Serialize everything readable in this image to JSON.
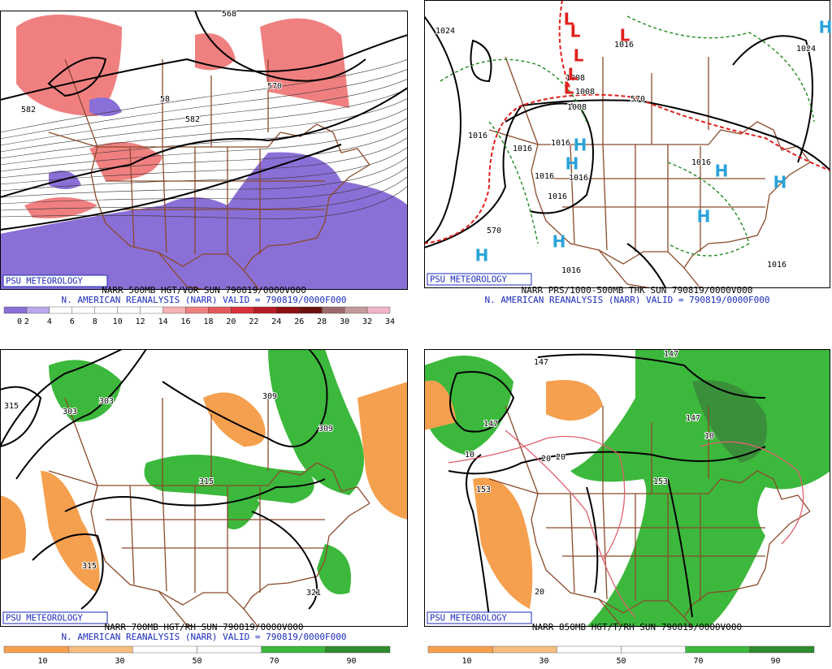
{
  "panels": [
    {
      "logo": "PSU METEOROLOGY",
      "title": "NARR 500MB HGT/VOR SUN 790819/0000V000",
      "subtitle": "N. AMERICAN REANALYSIS (NARR) VALID = 790819/0000F000",
      "contour_labels": [
        "568",
        "570",
        "582",
        "58",
        "582"
      ],
      "colorbar": [
        "0",
        "2",
        "4",
        "6",
        "8",
        "10",
        "12",
        "14",
        "16",
        "18",
        "20",
        "22",
        "24",
        "26",
        "28",
        "30",
        "32",
        "34"
      ]
    },
    {
      "logo": "PSU METEOROLOGY",
      "title": "NARR PRS/1000-500MB THK SUN 790819/0000V000",
      "subtitle": "N. AMERICAN REANALYSIS (NARR) VALID = 790819/0000F000",
      "contour_labels": [
        "1024",
        "1024",
        "1016",
        "1008",
        "1008",
        "1008",
        "570",
        "1016",
        "1016",
        "1016",
        "1016",
        "1016",
        "1016",
        "1016",
        "1016",
        "1016",
        "570"
      ],
      "pressure_centers": [
        "H",
        "H",
        "H",
        "H",
        "H",
        "H",
        "H",
        "H",
        "L",
        "L",
        "L",
        "L",
        "L",
        "L"
      ]
    },
    {
      "logo": "PSU METEOROLOGY",
      "title": "NARR 700MB HGT/RH SUN 790819/0000V000",
      "subtitle": "N. AMERICAN REANALYSIS (NARR) VALID = 790819/0000F000",
      "contour_labels": [
        "315",
        "303",
        "303",
        "309",
        "309",
        "315",
        "315",
        "321"
      ],
      "colorbar": [
        "10",
        "30",
        "50",
        "70",
        "90"
      ]
    },
    {
      "logo": "PSU METEOROLOGY",
      "title": "NARR 850MB HGT/T/RH SUN 790819/0000V000",
      "contour_labels": [
        "147",
        "147",
        "147",
        "147",
        "153",
        "153",
        "10",
        "20",
        "20",
        "10",
        "20"
      ],
      "colorbar": [
        "10",
        "30",
        "50",
        "70",
        "90"
      ]
    }
  ]
}
